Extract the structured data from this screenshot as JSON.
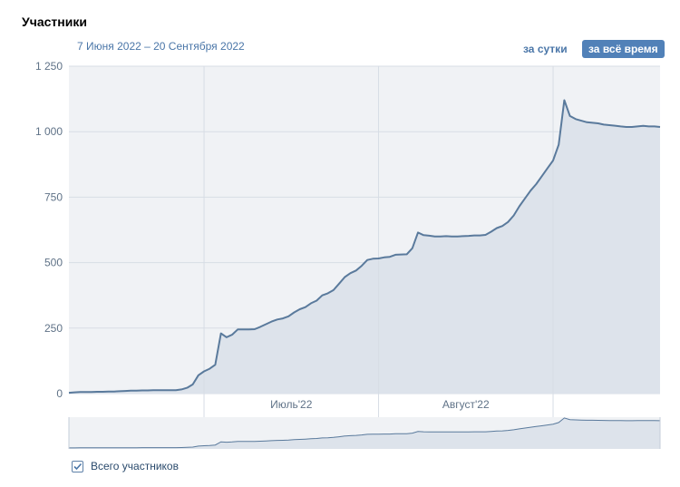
{
  "header": {
    "title": "Участники",
    "date_range": "7 Июня 2022 – 20 Сентября 2022",
    "btn_day": "за сутки",
    "btn_all": "за всё время"
  },
  "legend": {
    "label": "Всего участников"
  },
  "colors": {
    "line": "#5a7a9c",
    "fill": "#dde3eb",
    "plot_bg": "#f0f2f5",
    "grid": "#d7dde5",
    "accent": "#5181b8"
  },
  "chart_data": {
    "type": "area",
    "xlabel": "",
    "ylabel": "",
    "ylim": [
      0,
      1250
    ],
    "xlim": [
      "2022-06-07",
      "2022-09-20"
    ],
    "y_ticks": [
      {
        "value": 0,
        "label": "0"
      },
      {
        "value": 250,
        "label": "250"
      },
      {
        "value": 500,
        "label": "500"
      },
      {
        "value": 750,
        "label": "750"
      },
      {
        "value": 1000,
        "label": "1 000"
      },
      {
        "value": 1250,
        "label": "1 250"
      }
    ],
    "x_ticks": [
      {
        "date": "2022-07-01",
        "label": "Июль'22"
      },
      {
        "date": "2022-08-01",
        "label": "Август'22"
      }
    ],
    "grid": true,
    "legend_position": "bottom-left",
    "series": [
      {
        "name": "Всего участников",
        "x": [
          "2022-06-07",
          "2022-06-08",
          "2022-06-09",
          "2022-06-10",
          "2022-06-11",
          "2022-06-12",
          "2022-06-13",
          "2022-06-14",
          "2022-06-15",
          "2022-06-16",
          "2022-06-17",
          "2022-06-18",
          "2022-06-19",
          "2022-06-20",
          "2022-06-21",
          "2022-06-22",
          "2022-06-23",
          "2022-06-24",
          "2022-06-25",
          "2022-06-26",
          "2022-06-27",
          "2022-06-28",
          "2022-06-29",
          "2022-06-30",
          "2022-07-01",
          "2022-07-02",
          "2022-07-03",
          "2022-07-04",
          "2022-07-05",
          "2022-07-06",
          "2022-07-07",
          "2022-07-08",
          "2022-07-09",
          "2022-07-10",
          "2022-07-11",
          "2022-07-12",
          "2022-07-13",
          "2022-07-14",
          "2022-07-15",
          "2022-07-16",
          "2022-07-17",
          "2022-07-18",
          "2022-07-19",
          "2022-07-20",
          "2022-07-21",
          "2022-07-22",
          "2022-07-23",
          "2022-07-24",
          "2022-07-25",
          "2022-07-26",
          "2022-07-27",
          "2022-07-28",
          "2022-07-29",
          "2022-07-30",
          "2022-07-31",
          "2022-08-01",
          "2022-08-02",
          "2022-08-03",
          "2022-08-04",
          "2022-08-05",
          "2022-08-06",
          "2022-08-07",
          "2022-08-08",
          "2022-08-09",
          "2022-08-10",
          "2022-08-11",
          "2022-08-12",
          "2022-08-13",
          "2022-08-14",
          "2022-08-15",
          "2022-08-16",
          "2022-08-17",
          "2022-08-18",
          "2022-08-19",
          "2022-08-20",
          "2022-08-21",
          "2022-08-22",
          "2022-08-23",
          "2022-08-24",
          "2022-08-25",
          "2022-08-26",
          "2022-08-27",
          "2022-08-28",
          "2022-08-29",
          "2022-08-30",
          "2022-08-31",
          "2022-09-01",
          "2022-09-02",
          "2022-09-03",
          "2022-09-04",
          "2022-09-05",
          "2022-09-06",
          "2022-09-07",
          "2022-09-08",
          "2022-09-09",
          "2022-09-10",
          "2022-09-11",
          "2022-09-12",
          "2022-09-13",
          "2022-09-14",
          "2022-09-15",
          "2022-09-16",
          "2022-09-17",
          "2022-09-18",
          "2022-09-19",
          "2022-09-20"
        ],
        "values": [
          3,
          5,
          6,
          6,
          6,
          7,
          7,
          8,
          8,
          9,
          10,
          11,
          11,
          12,
          12,
          13,
          13,
          13,
          13,
          13,
          16,
          22,
          35,
          70,
          85,
          95,
          110,
          230,
          215,
          225,
          245,
          245,
          245,
          246,
          255,
          265,
          275,
          283,
          287,
          295,
          310,
          322,
          330,
          345,
          355,
          375,
          383,
          395,
          420,
          445,
          460,
          470,
          488,
          510,
          515,
          516,
          520,
          522,
          530,
          531,
          532,
          555,
          615,
          605,
          603,
          600,
          600,
          601,
          600,
          600,
          601,
          602,
          604,
          604,
          606,
          618,
          632,
          640,
          655,
          680,
          715,
          745,
          775,
          800,
          830,
          860,
          890,
          950,
          1120,
          1060,
          1048,
          1042,
          1036,
          1034,
          1032,
          1027,
          1025,
          1023,
          1020,
          1018,
          1018,
          1020,
          1022,
          1020,
          1020,
          1018
        ]
      }
    ]
  }
}
